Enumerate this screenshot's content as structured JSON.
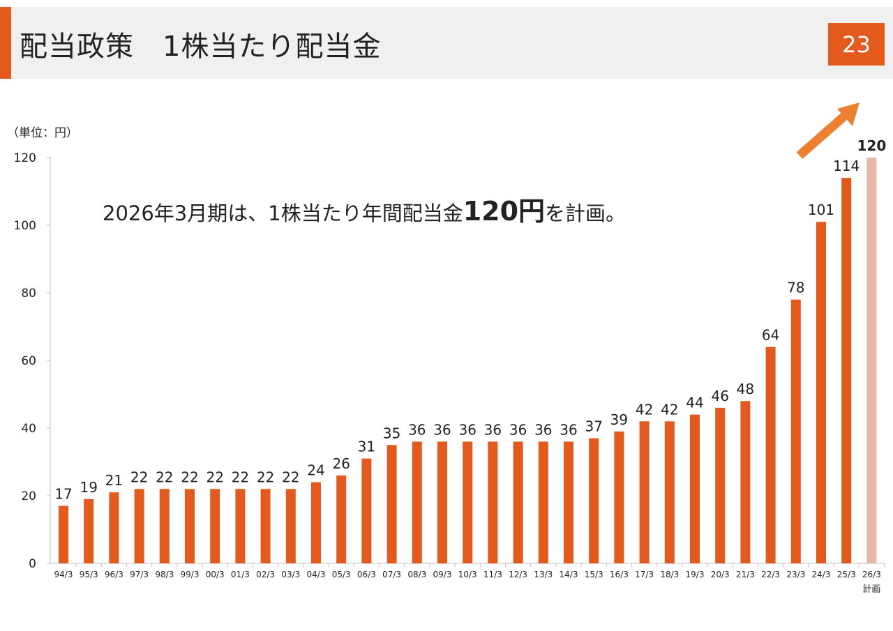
{
  "header": {
    "title": "配当政策　1株当たり配当金",
    "page_number": "23"
  },
  "unit_label": "（単位：円）",
  "headline": {
    "prefix": "2026年3月期は、1株当たり年間配当金",
    "emphasis": "120円",
    "suffix": "を計画。"
  },
  "colors": {
    "accent": "#e35a1c",
    "bar": "#e35a1c",
    "plan_bar": "#e7b8a8",
    "arrow": "#ed8030"
  },
  "chart_data": {
    "type": "bar",
    "title": "",
    "xlabel": "",
    "ylabel": "",
    "ylim": [
      0,
      120
    ],
    "yticks": [
      0,
      20,
      40,
      60,
      80,
      100,
      120
    ],
    "grid": false,
    "categories": [
      "94/3",
      "95/3",
      "96/3",
      "97/3",
      "98/3",
      "99/3",
      "00/3",
      "01/3",
      "02/3",
      "03/3",
      "04/3",
      "05/3",
      "06/3",
      "07/3",
      "08/3",
      "09/3",
      "10/3",
      "11/3",
      "12/3",
      "13/3",
      "14/3",
      "15/3",
      "16/3",
      "17/3",
      "18/3",
      "19/3",
      "20/3",
      "21/3",
      "22/3",
      "23/3",
      "24/3",
      "25/3",
      "26/3"
    ],
    "values": [
      17,
      19,
      21,
      22,
      22,
      22,
      22,
      22,
      22,
      22,
      24,
      26,
      31,
      35,
      36,
      36,
      36,
      36,
      36,
      36,
      36,
      37,
      39,
      42,
      42,
      44,
      46,
      48,
      64,
      78,
      101,
      114,
      120
    ],
    "plan_index": 32,
    "plan_label": "計画",
    "annotation": "upward-arrow"
  }
}
